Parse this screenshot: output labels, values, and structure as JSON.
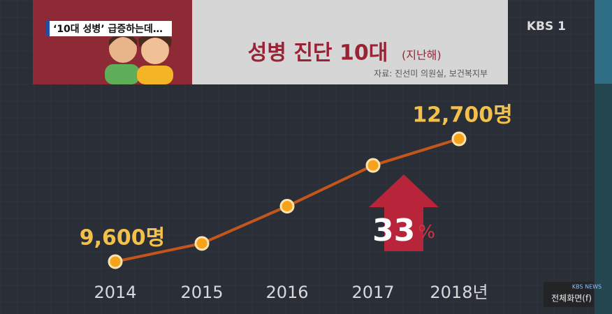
{
  "chart_data": {
    "type": "line",
    "headline": "‘10대 성병’ 급증하는데…",
    "title": "성병 진단 10대",
    "subtitle": "(지난해)",
    "source": "자료: 진선미 의원실, 보건복지부",
    "channel_logo": "KBS 1",
    "categories": [
      "2014",
      "2015",
      "2016",
      "2017",
      "2018년"
    ],
    "series": [
      {
        "name": "성병 진단 10대",
        "color": "#c4561c",
        "values": [
          9600,
          10060,
          11000,
          12030,
          12700
        ],
        "value_labels": [
          "9,600명",
          null,
          null,
          null,
          "12,700명"
        ]
      }
    ],
    "ylim": [
      9000,
      13000
    ],
    "annotation": "33%",
    "player_logo": "KBS NEWS",
    "fullscreen_label": "전체화면(f)"
  }
}
